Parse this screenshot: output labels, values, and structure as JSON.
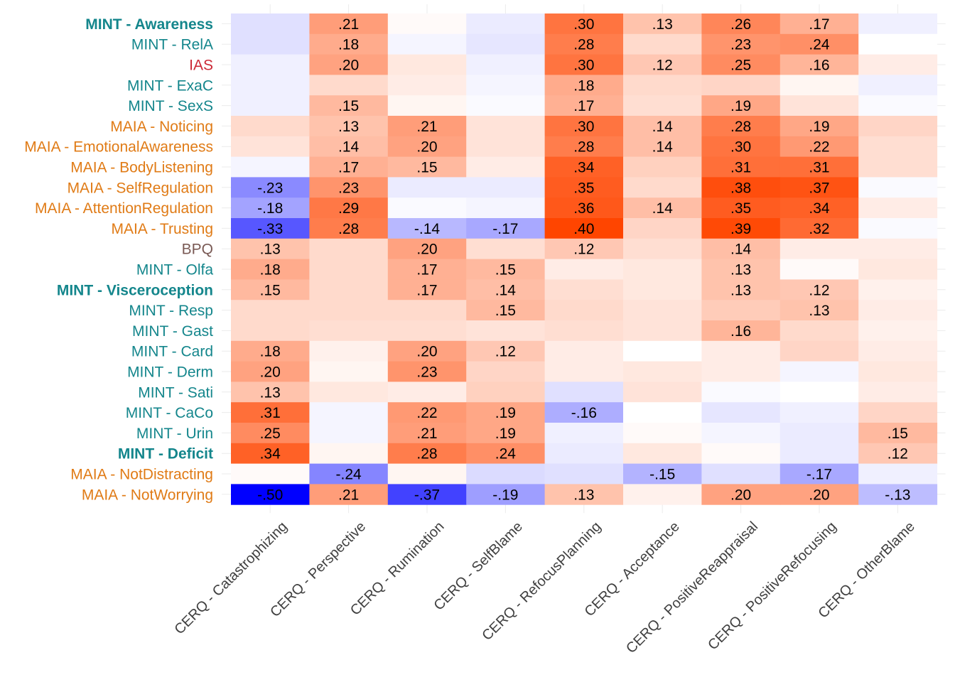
{
  "chart_data": {
    "type": "heatmap",
    "title": "",
    "xlabel": "",
    "ylabel": "",
    "color_scale": {
      "low": "#0000FF",
      "mid": "#FFFFFF",
      "high": "#FF4500"
    },
    "value_range": [
      -0.5,
      0.4
    ],
    "grid": true,
    "label_colors": {
      "MINT": "#14868C",
      "MAIA": "#E07B16",
      "IAS": "#CC2936",
      "BPQ": "#7A5A55"
    },
    "columns": [
      "CERQ - Catastrophizing",
      "CERQ - Perspective",
      "CERQ - Rumination",
      "CERQ - SelfBlame",
      "CERQ - RefocusPlanning",
      "CERQ - Acceptance",
      "CERQ - PositiveReappraisal",
      "CERQ - PositiveRefocusing",
      "CERQ - OtherBlame"
    ],
    "rows": [
      {
        "label": "MINT - Awareness",
        "group": "MINT",
        "bold": true
      },
      {
        "label": "MINT - RelA",
        "group": "MINT",
        "bold": false
      },
      {
        "label": "IAS",
        "group": "IAS",
        "bold": false
      },
      {
        "label": "MINT - ExaC",
        "group": "MINT",
        "bold": false
      },
      {
        "label": "MINT - SexS",
        "group": "MINT",
        "bold": false
      },
      {
        "label": "MAIA - Noticing",
        "group": "MAIA",
        "bold": false
      },
      {
        "label": "MAIA - EmotionalAwareness",
        "group": "MAIA",
        "bold": false
      },
      {
        "label": "MAIA - BodyListening",
        "group": "MAIA",
        "bold": false
      },
      {
        "label": "MAIA - SelfRegulation",
        "group": "MAIA",
        "bold": false
      },
      {
        "label": "MAIA - AttentionRegulation",
        "group": "MAIA",
        "bold": false
      },
      {
        "label": "MAIA - Trusting",
        "group": "MAIA",
        "bold": false
      },
      {
        "label": "BPQ",
        "group": "BPQ",
        "bold": false
      },
      {
        "label": "MINT - Olfa",
        "group": "MINT",
        "bold": false
      },
      {
        "label": "MINT - Visceroception",
        "group": "MINT",
        "bold": true
      },
      {
        "label": "MINT - Resp",
        "group": "MINT",
        "bold": false
      },
      {
        "label": "MINT - Gast",
        "group": "MINT",
        "bold": false
      },
      {
        "label": "MINT - Card",
        "group": "MINT",
        "bold": false
      },
      {
        "label": "MINT - Derm",
        "group": "MINT",
        "bold": false
      },
      {
        "label": "MINT - Sati",
        "group": "MINT",
        "bold": false
      },
      {
        "label": "MINT - CaCo",
        "group": "MINT",
        "bold": false
      },
      {
        "label": "MINT - Urin",
        "group": "MINT",
        "bold": false
      },
      {
        "label": "MINT - Deficit",
        "group": "MINT",
        "bold": true
      },
      {
        "label": "MAIA - NotDistracting",
        "group": "MAIA",
        "bold": false
      },
      {
        "label": "MAIA - NotWorrying",
        "group": "MAIA",
        "bold": false
      }
    ],
    "values": [
      [
        -0.06,
        0.21,
        0.01,
        -0.04,
        0.3,
        0.13,
        0.26,
        0.17,
        -0.03
      ],
      [
        -0.06,
        0.18,
        -0.02,
        -0.05,
        0.28,
        0.08,
        0.23,
        0.24,
        0.0
      ],
      [
        -0.03,
        0.2,
        0.05,
        -0.03,
        0.3,
        0.12,
        0.25,
        0.16,
        0.04
      ],
      [
        -0.03,
        0.08,
        0.04,
        -0.02,
        0.18,
        0.08,
        0.09,
        0.02,
        -0.03
      ],
      [
        -0.03,
        0.15,
        0.02,
        -0.01,
        0.17,
        0.07,
        0.19,
        0.06,
        -0.01
      ],
      [
        0.08,
        0.13,
        0.21,
        0.06,
        0.3,
        0.14,
        0.28,
        0.19,
        0.09
      ],
      [
        0.06,
        0.14,
        0.2,
        0.06,
        0.28,
        0.14,
        0.3,
        0.22,
        0.07
      ],
      [
        -0.02,
        0.17,
        0.15,
        0.04,
        0.34,
        0.1,
        0.31,
        0.31,
        0.07
      ],
      [
        -0.23,
        0.23,
        -0.04,
        -0.04,
        0.35,
        0.08,
        0.38,
        0.37,
        -0.01
      ],
      [
        -0.18,
        0.29,
        -0.01,
        -0.02,
        0.36,
        0.14,
        0.35,
        0.34,
        0.04
      ],
      [
        -0.33,
        0.28,
        -0.14,
        -0.17,
        0.4,
        0.09,
        0.39,
        0.32,
        -0.01
      ],
      [
        0.13,
        0.08,
        0.2,
        0.07,
        0.12,
        0.07,
        0.14,
        0.04,
        0.04
      ],
      [
        0.18,
        0.08,
        0.17,
        0.15,
        0.04,
        0.05,
        0.13,
        0.01,
        0.05
      ],
      [
        0.15,
        0.08,
        0.17,
        0.14,
        0.07,
        0.05,
        0.13,
        0.12,
        0.03
      ],
      [
        0.08,
        0.08,
        0.08,
        0.15,
        0.08,
        0.06,
        0.11,
        0.13,
        0.04
      ],
      [
        0.08,
        0.07,
        0.07,
        0.06,
        0.07,
        0.06,
        0.16,
        0.08,
        0.03
      ],
      [
        0.18,
        0.03,
        0.2,
        0.12,
        0.04,
        0.0,
        0.04,
        0.09,
        0.04
      ],
      [
        0.2,
        0.02,
        0.23,
        0.09,
        0.04,
        0.05,
        0.04,
        -0.02,
        0.05
      ],
      [
        0.13,
        0.05,
        0.04,
        0.1,
        -0.06,
        0.06,
        -0.01,
        0.0,
        0.04
      ],
      [
        0.31,
        -0.02,
        0.22,
        0.19,
        -0.16,
        0.0,
        -0.05,
        -0.03,
        0.09
      ],
      [
        0.25,
        -0.02,
        0.21,
        0.19,
        -0.03,
        0.01,
        -0.02,
        -0.04,
        0.15
      ],
      [
        0.34,
        0.02,
        0.28,
        0.24,
        -0.04,
        0.05,
        0.01,
        -0.04,
        0.12
      ],
      [
        0.01,
        -0.24,
        0.02,
        -0.07,
        -0.06,
        -0.15,
        -0.06,
        -0.17,
        -0.03
      ],
      [
        -0.5,
        0.21,
        -0.37,
        -0.19,
        0.13,
        0.03,
        0.2,
        0.2,
        -0.13
      ]
    ],
    "label_threshold": 0.115
  }
}
